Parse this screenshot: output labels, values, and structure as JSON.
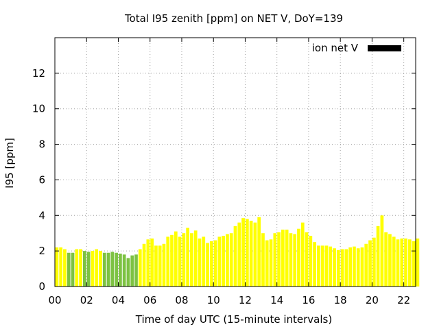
{
  "chart_data": {
    "type": "bar",
    "title": "Total I95 zenith [ppm] on NET V, DoY=139",
    "xlabel": "Time of day UTC (15-minute intervals)",
    "ylabel": "I95 [ppm]",
    "legend": {
      "label": "ion net V",
      "color": "#000000",
      "position": "top-right"
    },
    "grid": true,
    "xlim": [
      0,
      22.75
    ],
    "ylim": [
      0,
      14
    ],
    "x_ticks": [
      {
        "value": 0,
        "label": "00"
      },
      {
        "value": 2,
        "label": "02"
      },
      {
        "value": 4,
        "label": "04"
      },
      {
        "value": 6,
        "label": "06"
      },
      {
        "value": 8,
        "label": "08"
      },
      {
        "value": 10,
        "label": "10"
      },
      {
        "value": 12,
        "label": "12"
      },
      {
        "value": 14,
        "label": "14"
      },
      {
        "value": 16,
        "label": "16"
      },
      {
        "value": 18,
        "label": "18"
      },
      {
        "value": 20,
        "label": "20"
      },
      {
        "value": 22,
        "label": "22"
      }
    ],
    "y_ticks": [
      {
        "value": 0,
        "label": "0"
      },
      {
        "value": 2,
        "label": "2"
      },
      {
        "value": 4,
        "label": "4"
      },
      {
        "value": 6,
        "label": "6"
      },
      {
        "value": 8,
        "label": "8"
      },
      {
        "value": 10,
        "label": "10"
      },
      {
        "value": 12,
        "label": "12"
      }
    ],
    "bar_interval_hours": 0.25,
    "colors": {
      "yellow": "#ffff00",
      "green": "#7dc242",
      "grid": "#a0a0a0"
    },
    "values": [
      2.2,
      2.2,
      2.1,
      1.9,
      1.9,
      2.1,
      2.1,
      2.0,
      1.95,
      2.0,
      2.1,
      2.0,
      1.9,
      1.9,
      1.95,
      1.9,
      1.85,
      1.8,
      1.6,
      1.75,
      1.8,
      2.1,
      2.4,
      2.65,
      2.7,
      2.3,
      2.3,
      2.4,
      2.8,
      2.9,
      3.1,
      2.8,
      3.0,
      3.3,
      3.0,
      3.15,
      2.7,
      2.8,
      2.45,
      2.55,
      2.6,
      2.8,
      2.85,
      2.95,
      3.0,
      3.4,
      3.6,
      3.85,
      3.8,
      3.7,
      3.6,
      3.9,
      3.0,
      2.6,
      2.65,
      3.0,
      3.05,
      3.2,
      3.2,
      3.0,
      2.95,
      3.25,
      3.6,
      3.05,
      2.85,
      2.5,
      2.3,
      2.3,
      2.3,
      2.25,
      2.15,
      2.05,
      2.1,
      2.1,
      2.2,
      2.25,
      2.15,
      2.2,
      2.4,
      2.6,
      2.75,
      3.4,
      4.0,
      3.05,
      2.95,
      2.8,
      2.65,
      2.7,
      2.7,
      2.65,
      2.55,
      2.7
    ],
    "bar_colors": [
      "yellow",
      "yellow",
      "yellow",
      "green",
      "green",
      "yellow",
      "yellow",
      "green",
      "green",
      "yellow",
      "yellow",
      "yellow",
      "green",
      "green",
      "green",
      "green",
      "green",
      "green",
      "green",
      "green",
      "green",
      "yellow",
      "yellow",
      "yellow",
      "yellow",
      "yellow",
      "yellow",
      "yellow",
      "yellow",
      "yellow",
      "yellow",
      "yellow",
      "yellow",
      "yellow",
      "yellow",
      "yellow",
      "yellow",
      "yellow",
      "yellow",
      "yellow",
      "yellow",
      "yellow",
      "yellow",
      "yellow",
      "yellow",
      "yellow",
      "yellow",
      "yellow",
      "yellow",
      "yellow",
      "yellow",
      "yellow",
      "yellow",
      "yellow",
      "yellow",
      "yellow",
      "yellow",
      "yellow",
      "yellow",
      "yellow",
      "yellow",
      "yellow",
      "yellow",
      "yellow",
      "yellow",
      "yellow",
      "yellow",
      "yellow",
      "yellow",
      "yellow",
      "yellow",
      "yellow",
      "yellow",
      "yellow",
      "yellow",
      "yellow",
      "yellow",
      "yellow",
      "yellow",
      "yellow",
      "yellow",
      "yellow",
      "yellow",
      "yellow",
      "yellow",
      "yellow",
      "yellow",
      "yellow",
      "yellow",
      "yellow",
      "yellow",
      "yellow"
    ]
  }
}
